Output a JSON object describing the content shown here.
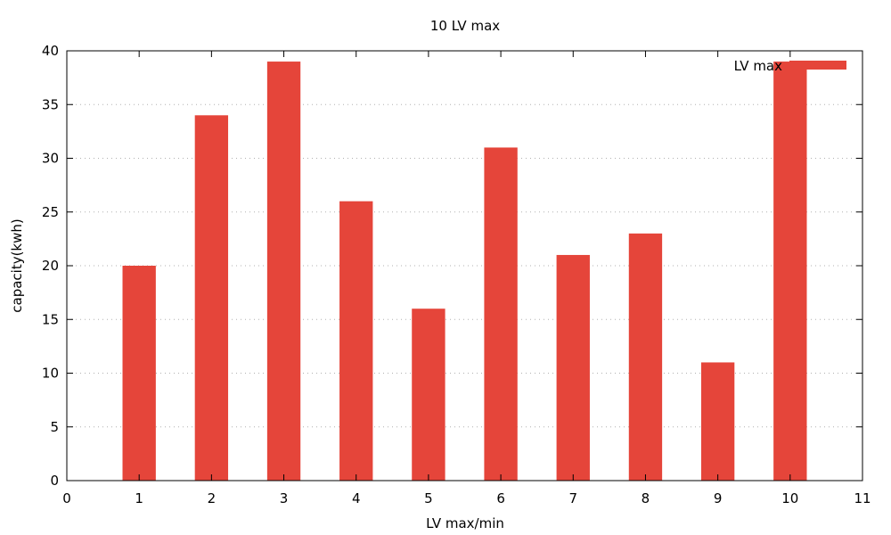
{
  "chart_data": {
    "type": "bar",
    "title": "10 LV max",
    "xlabel": "LV max/min",
    "ylabel": "capacity(kwh)",
    "x": [
      1,
      2,
      3,
      4,
      5,
      6,
      7,
      8,
      9,
      10
    ],
    "values": [
      20,
      34,
      39,
      26,
      16,
      31,
      21,
      23,
      11,
      39
    ],
    "series": [
      {
        "name": "LV max",
        "values": [
          20,
          34,
          39,
          26,
          16,
          31,
          21,
          23,
          11,
          39
        ]
      }
    ],
    "xlim": [
      0,
      11
    ],
    "ylim": [
      0,
      40
    ],
    "xticks": [
      "0",
      "1",
      "2",
      "3",
      "4",
      "5",
      "6",
      "7",
      "8",
      "9",
      "10",
      "11"
    ],
    "yticks": [
      "0",
      "5",
      "10",
      "15",
      "20",
      "25",
      "30",
      "35",
      "40"
    ],
    "grid": "horizontal dotted",
    "legend_position": "top-right",
    "bar_color": "#e5453a"
  }
}
